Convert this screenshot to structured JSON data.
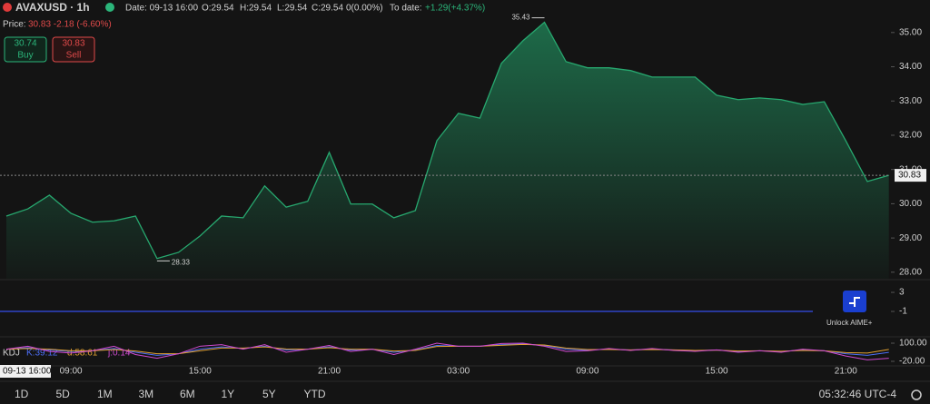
{
  "header": {
    "symbol": "AVAXUSD · 1h",
    "date": "Date: 09-13 16:00",
    "open": "O:29.54",
    "high": "H:29.54",
    "low": "L:29.54",
    "close": "C:29.54",
    "change": "0(0.00%)",
    "to_date_label": "To date:",
    "to_date": "+1.29(+4.37%)",
    "price_label": "Price:",
    "price": "30.83 -2.18 (-6.60%)"
  },
  "trade_buttons": [
    {
      "price": "30.74",
      "label": "Buy"
    },
    {
      "price": "30.83",
      "label": "Sell"
    }
  ],
  "crosshair_time": "09-13 16:00",
  "ranges": [
    "1D",
    "5D",
    "1M",
    "3M",
    "6M",
    "1Y",
    "5Y",
    "YTD"
  ],
  "clock": "05:32:46 UTC-4",
  "chart_data": [
    {
      "type": "area",
      "color": "#27a86f",
      "categories": [
        null,
        null,
        null,
        "09:00",
        null,
        null,
        null,
        null,
        null,
        "15:00",
        null,
        null,
        null,
        null,
        null,
        "21:00",
        null,
        null,
        null,
        null,
        null,
        "03:00",
        null,
        null,
        null,
        null,
        null,
        "09:00",
        null,
        null,
        null,
        null,
        null,
        "15:00",
        null,
        null,
        null,
        null,
        null,
        "21:00",
        null,
        null
      ],
      "values": [
        29.64,
        29.85,
        30.25,
        29.72,
        29.46,
        29.5,
        29.64,
        28.4,
        28.58,
        29.06,
        29.64,
        29.59,
        30.52,
        29.9,
        30.07,
        31.5,
        29.99,
        29.99,
        29.59,
        29.8,
        31.84,
        32.64,
        32.5,
        34.1,
        34.76,
        35.3,
        34.15,
        33.97,
        33.97,
        33.89,
        33.7,
        33.7,
        33.7,
        33.17,
        33.04,
        33.09,
        33.04,
        32.9,
        32.98,
        31.84,
        30.65,
        30.83
      ],
      "high": 35.43,
      "low": 28.33,
      "ylim": [
        27.81,
        35.95
      ],
      "yticks": [
        {
          "value": 28,
          "label": "28.00"
        },
        {
          "value": 29,
          "label": "29.00"
        },
        {
          "value": 30,
          "label": "30.00"
        },
        {
          "value": 31,
          "label": "31.00"
        },
        {
          "value": 32,
          "label": "32.00"
        },
        {
          "value": 33,
          "label": "33.00"
        },
        {
          "value": 34,
          "label": "34.00"
        },
        {
          "value": 35,
          "label": "35.00"
        }
      ]
    },
    {
      "type": "level",
      "color": "#2f45c8",
      "hline": -1,
      "annotation": "Unlock AIME+",
      "ylim": [
        -6.14,
        5.29
      ],
      "yticks": [
        3,
        -1
      ]
    },
    {
      "type": "line",
      "title": "KDJ",
      "legend": [
        "K:39.12",
        "d:58.61",
        "j:0.14"
      ],
      "series": [
        {
          "color": "#4c6ef5",
          "values": [
            60,
            70,
            55,
            45,
            50,
            65,
            40,
            20,
            30,
            60,
            75,
            65,
            80,
            55,
            60,
            75,
            55,
            60,
            40,
            55,
            85,
            80,
            80,
            90,
            95,
            85,
            60,
            55,
            60,
            55,
            60,
            55,
            50,
            55,
            45,
            50,
            45,
            55,
            50,
            30,
            20,
            39.12
          ]
        },
        {
          "color": "#e0a030",
          "values": [
            60,
            65,
            60,
            50,
            50,
            58,
            48,
            30,
            30,
            50,
            68,
            68,
            75,
            62,
            60,
            70,
            60,
            60,
            48,
            52,
            78,
            80,
            80,
            86,
            92,
            88,
            68,
            58,
            58,
            56,
            58,
            56,
            52,
            54,
            48,
            50,
            47,
            52,
            50,
            38,
            35,
            58.61
          ]
        },
        {
          "color": "#d04ad0",
          "values": [
            60,
            80,
            45,
            35,
            50,
            80,
            25,
            0,
            30,
            80,
            90,
            60,
            90,
            40,
            60,
            85,
            45,
            60,
            25,
            60,
            100,
            80,
            80,
            98,
            100,
            80,
            45,
            50,
            65,
            52,
            65,
            52,
            46,
            56,
            40,
            50,
            40,
            60,
            50,
            15,
            -10,
            0.14
          ]
        }
      ],
      "ylim": [
        -44,
        136
      ],
      "yticks": [
        {
          "value": 100,
          "label": "100.00"
        },
        {
          "value": -20,
          "label": "-20.00"
        }
      ]
    }
  ]
}
